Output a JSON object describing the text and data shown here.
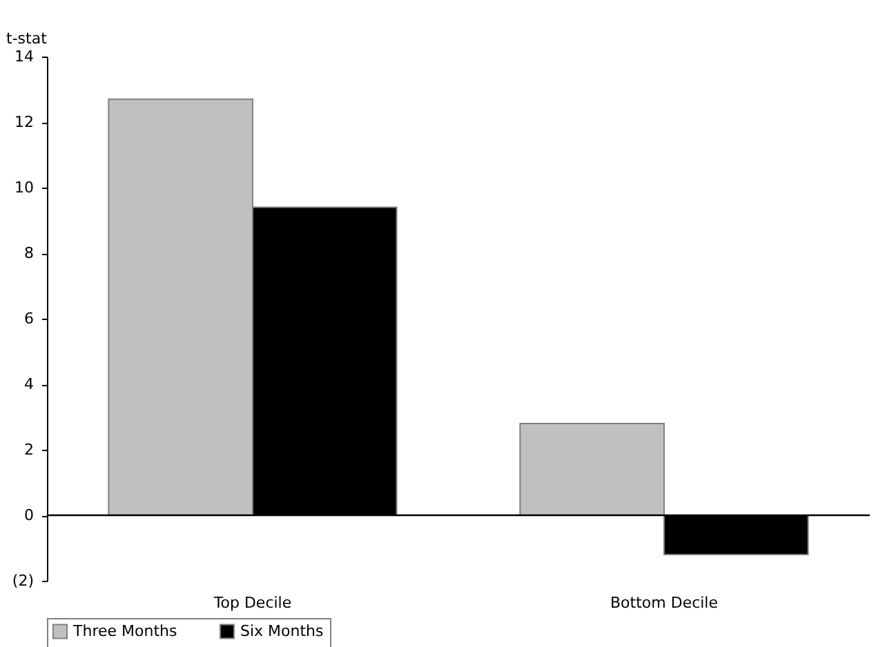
{
  "chart_data": {
    "type": "bar",
    "ylabel": "t-stat",
    "categories": [
      "Top Decile",
      "Bottom Decile"
    ],
    "series": [
      {
        "name": "Three Months",
        "color": "#c0c0c0",
        "values": [
          12.7,
          2.8
        ]
      },
      {
        "name": "Six Months",
        "color": "#000000",
        "values": [
          9.4,
          -1.2
        ]
      }
    ],
    "ylim": [
      -2,
      14
    ],
    "yticks": [
      {
        "value": -2,
        "label": "(2)"
      },
      0,
      2,
      4,
      6,
      8,
      10,
      12,
      14
    ],
    "ref_lines": [
      {
        "axis": "y",
        "value": 0,
        "label": null
      }
    ],
    "grid": false,
    "legend": "bottom"
  }
}
